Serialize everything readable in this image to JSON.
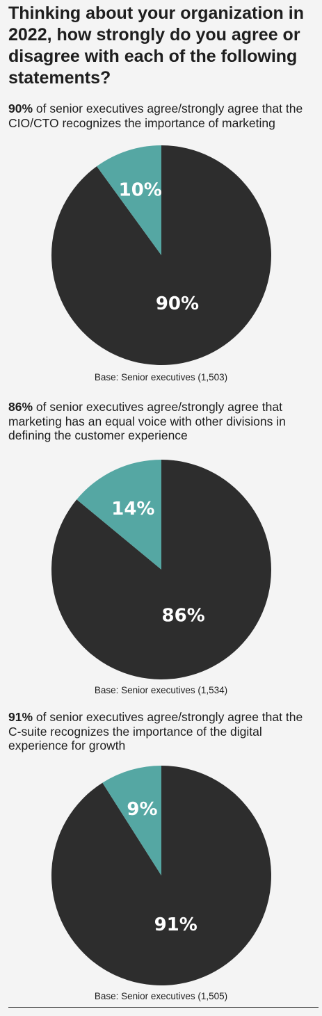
{
  "title": "Thinking about your organization in 2022, how strongly do you agree or disagree with each of the following statements?",
  "colors": {
    "agree": "#2d2d2d",
    "other": "#55a7a3",
    "background": "#f4f4f4"
  },
  "sections": [
    {
      "statement_pct": "90%",
      "statement_text": " of senior executives agree/strongly agree that the CIO/CTO recognizes the importance of marketing",
      "base": "Base: Senior executives (1,503)"
    },
    {
      "statement_pct": "86%",
      "statement_text": " of senior executives agree/strongly agree that marketing has an equal voice with other divisions in defining the customer experience",
      "base": "Base: Senior executives (1,534)"
    },
    {
      "statement_pct": "91%",
      "statement_text": " of senior executives agree/strongly agree that the C-suite recognizes the importance of the digital experience for growth",
      "base": "Base: Senior executives (1,505)"
    }
  ],
  "chart_data": [
    {
      "type": "pie",
      "slices": [
        {
          "label": "90%",
          "value": 90,
          "color": "#2d2d2d"
        },
        {
          "label": "10%",
          "value": 10,
          "color": "#55a7a3"
        }
      ]
    },
    {
      "type": "pie",
      "slices": [
        {
          "label": "86%",
          "value": 86,
          "color": "#2d2d2d"
        },
        {
          "label": "14%",
          "value": 14,
          "color": "#55a7a3"
        }
      ]
    },
    {
      "type": "pie",
      "slices": [
        {
          "label": "91%",
          "value": 91,
          "color": "#2d2d2d"
        },
        {
          "label": "9%",
          "value": 9,
          "color": "#55a7a3"
        }
      ]
    }
  ]
}
